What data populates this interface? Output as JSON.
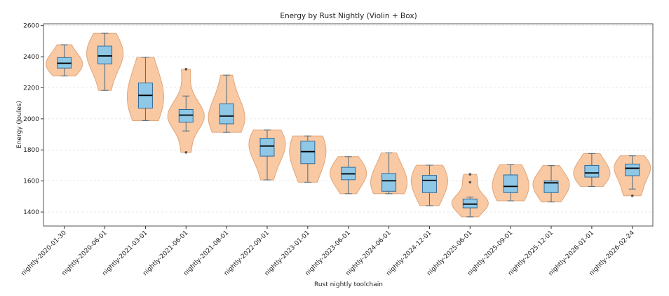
{
  "chart_data": {
    "type": "violin",
    "title": "Energy by Rust Nightly (Violin + Box)",
    "xlabel": "Rust nightly toolchain",
    "ylabel": "Energy (Joules)",
    "ylim": [
      1310,
      2612
    ],
    "yticks": [
      1400,
      1600,
      1800,
      2000,
      2200,
      2400,
      2600
    ],
    "grid": "horizontal dashed",
    "colors": {
      "violin": "#f9c9a3",
      "violin_edge": "#e0a57a",
      "box": "#8ec8e6",
      "box_edge": "#2f6a9a",
      "median": "#000000"
    },
    "categories": [
      "nightly-2020-01-30",
      "nightly-2020-06-01",
      "nightly-2021-03-01",
      "nightly-2021-06-01",
      "nightly-2021-08-01",
      "nightly-2022-09-01",
      "nightly-2023-01-01",
      "nightly-2023-06-01",
      "nightly-2024-06-01",
      "nightly-2024-12-01",
      "nightly-2025-06-01",
      "nightly-2025-09-01",
      "nightly-2025-12-01",
      "nightly-2026-01-01",
      "nightly-2026-02-24"
    ],
    "boxes": [
      {
        "whislo": 2276,
        "q1": 2327,
        "med": 2358,
        "q3": 2394,
        "whishi": 2477,
        "fliers": []
      },
      {
        "whislo": 2183,
        "q1": 2354,
        "med": 2405,
        "q3": 2468,
        "whishi": 2552,
        "fliers": []
      },
      {
        "whislo": 1988,
        "q1": 2069,
        "med": 2151,
        "q3": 2231,
        "whishi": 2396,
        "fliers": []
      },
      {
        "whislo": 1922,
        "q1": 1979,
        "med": 2024,
        "q3": 2060,
        "whishi": 2147,
        "fliers": [
          2320,
          1784
        ]
      },
      {
        "whislo": 1913,
        "q1": 1968,
        "med": 2018,
        "q3": 2097,
        "whishi": 2282,
        "fliers": []
      },
      {
        "whislo": 1607,
        "q1": 1760,
        "med": 1825,
        "q3": 1875,
        "whishi": 1928,
        "fliers": []
      },
      {
        "whislo": 1592,
        "q1": 1712,
        "med": 1789,
        "q3": 1856,
        "whishi": 1890,
        "fliers": []
      },
      {
        "whislo": 1518,
        "q1": 1608,
        "med": 1646,
        "q3": 1688,
        "whishi": 1757,
        "fliers": []
      },
      {
        "whislo": 1518,
        "q1": 1534,
        "med": 1601,
        "q3": 1648,
        "whishi": 1781,
        "fliers": []
      },
      {
        "whislo": 1441,
        "q1": 1525,
        "med": 1604,
        "q3": 1636,
        "whishi": 1702,
        "fliers": []
      },
      {
        "whislo": 1369,
        "q1": 1427,
        "med": 1451,
        "q3": 1484,
        "whishi": 1496,
        "fliers": [
          1643,
          1592
        ]
      },
      {
        "whislo": 1472,
        "q1": 1525,
        "med": 1565,
        "q3": 1639,
        "whishi": 1705,
        "fliers": []
      },
      {
        "whislo": 1465,
        "q1": 1525,
        "med": 1588,
        "q3": 1600,
        "whishi": 1699,
        "fliers": []
      },
      {
        "whislo": 1565,
        "q1": 1625,
        "med": 1652,
        "q3": 1700,
        "whishi": 1777,
        "fliers": []
      },
      {
        "whislo": 1548,
        "q1": 1634,
        "med": 1682,
        "q3": 1709,
        "whishi": 1762,
        "fliers": [
          1505
        ]
      }
    ]
  }
}
